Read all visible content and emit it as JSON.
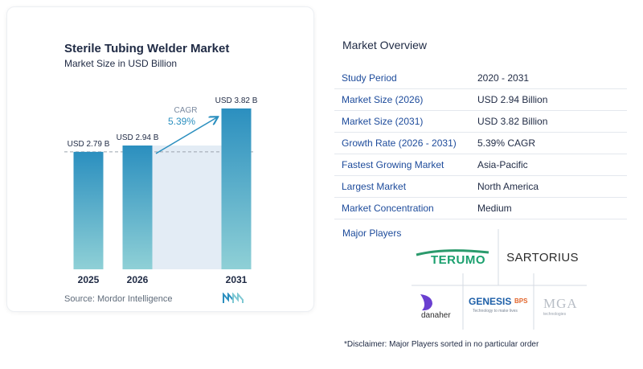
{
  "chart": {
    "title": "Sterile Tubing Welder Market",
    "subtitle": "Market Size in USD Billion",
    "source": "Source:  Mordor Intelligence",
    "cagr_label": "CAGR",
    "cagr_value": "5.39%"
  },
  "chart_data": {
    "type": "bar",
    "title": "Sterile Tubing Welder Market",
    "subtitle": "Market Size in USD Billion",
    "categories": [
      "2025",
      "2026",
      "2031"
    ],
    "values": [
      2.79,
      2.94,
      3.82
    ],
    "data_labels": [
      "USD 2.79 B",
      "USD 2.94 B",
      "USD 3.82 B"
    ],
    "annotation": {
      "label": "CAGR",
      "value": "5.39%"
    },
    "ylim": [
      0,
      4.2
    ],
    "grid": false,
    "colors": {
      "bar_top": "#2b8fbf",
      "bar_bottom": "#8fd0d6",
      "shade": "#e3ecf5"
    }
  },
  "overview": {
    "title": "Market Overview",
    "rows": [
      {
        "label": "Study Period",
        "value": "2020 - 2031"
      },
      {
        "label": "Market Size (2026)",
        "value": "USD 2.94 Billion"
      },
      {
        "label": "Market Size (2031)",
        "value": "USD 3.82 Billion"
      },
      {
        "label": "Growth Rate (2026 - 2031)",
        "value": "5.39% CAGR"
      },
      {
        "label": "Fastest Growing Market",
        "value": "Asia-Pacific"
      },
      {
        "label": "Largest Market",
        "value": "North America"
      },
      {
        "label": "Market Concentration",
        "value": "Medium"
      }
    ]
  },
  "players": {
    "title": "Major Players",
    "logos": {
      "terumo": "TERUMO",
      "sartorius": "SARTORIUS",
      "danaher": "danaher",
      "genesis": "GENESIS",
      "genesis_suffix": "BPS",
      "genesis_tagline": "Technology to make lives",
      "mga": "MGA",
      "mga_sub": "technologies"
    }
  },
  "disclaimer": "*Disclaimer: Major Players sorted in no particular order",
  "colors": {
    "label_blue": "#1d4b9b",
    "text_dark": "#1f2a44",
    "brand_teal": "#2b8fbf"
  }
}
